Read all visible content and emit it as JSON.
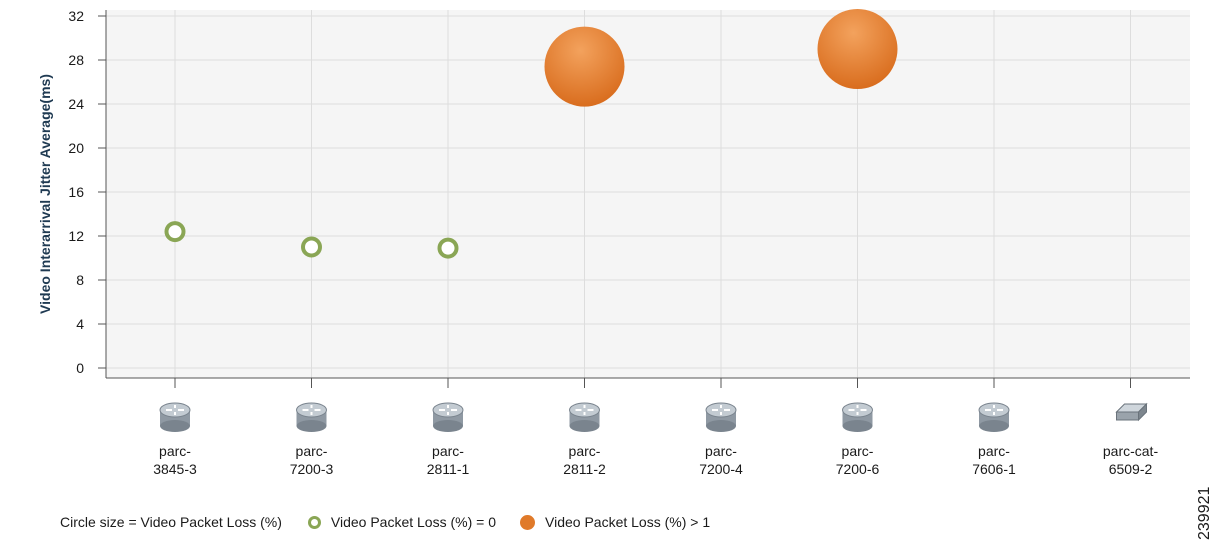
{
  "chart_data": {
    "type": "scatter",
    "ylabel": "Video Interarrival Jitter Average(ms)",
    "ylim": [
      0,
      32
    ],
    "yticks": [
      0,
      4,
      8,
      12,
      16,
      20,
      24,
      28,
      32
    ],
    "categories": [
      "parc-\n3845-3",
      "parc-\n7200-3",
      "parc-\n2811-1",
      "parc-\n2811-2",
      "parc-\n7200-4",
      "parc-\n7200-6",
      "parc-\n7606-1",
      "parc-cat-\n6509-2"
    ],
    "device_icons": [
      "router-icon",
      "router-icon",
      "router-icon",
      "router-icon",
      "router-icon",
      "router-icon",
      "router-icon",
      "switch-icon"
    ],
    "points": [
      {
        "category": "parc-3845-3",
        "index": 0,
        "y": 12.4,
        "loss_group": "zero"
      },
      {
        "category": "parc-7200-3",
        "index": 1,
        "y": 11.0,
        "loss_group": "zero"
      },
      {
        "category": "parc-2811-1",
        "index": 2,
        "y": 10.9,
        "loss_group": "zero"
      },
      {
        "category": "parc-2811-2",
        "index": 3,
        "y": 27.4,
        "loss_group": "gt1"
      },
      {
        "category": "parc-7200-6",
        "index": 5,
        "y": 29.0,
        "loss_group": "gt1"
      }
    ],
    "grid": true,
    "colors": {
      "zero": "#8aa655",
      "gt1": "#e07a2a",
      "grid": "#dddddd",
      "plot_bg": "#f5f5f5"
    }
  },
  "legend": {
    "size_note": "Circle size = Video Packet Loss (%)",
    "zero_label": "Video Packet Loss (%)  = 0",
    "gt1_label": "Video Packet Loss (%)  > 1"
  },
  "figure_id": "239921"
}
